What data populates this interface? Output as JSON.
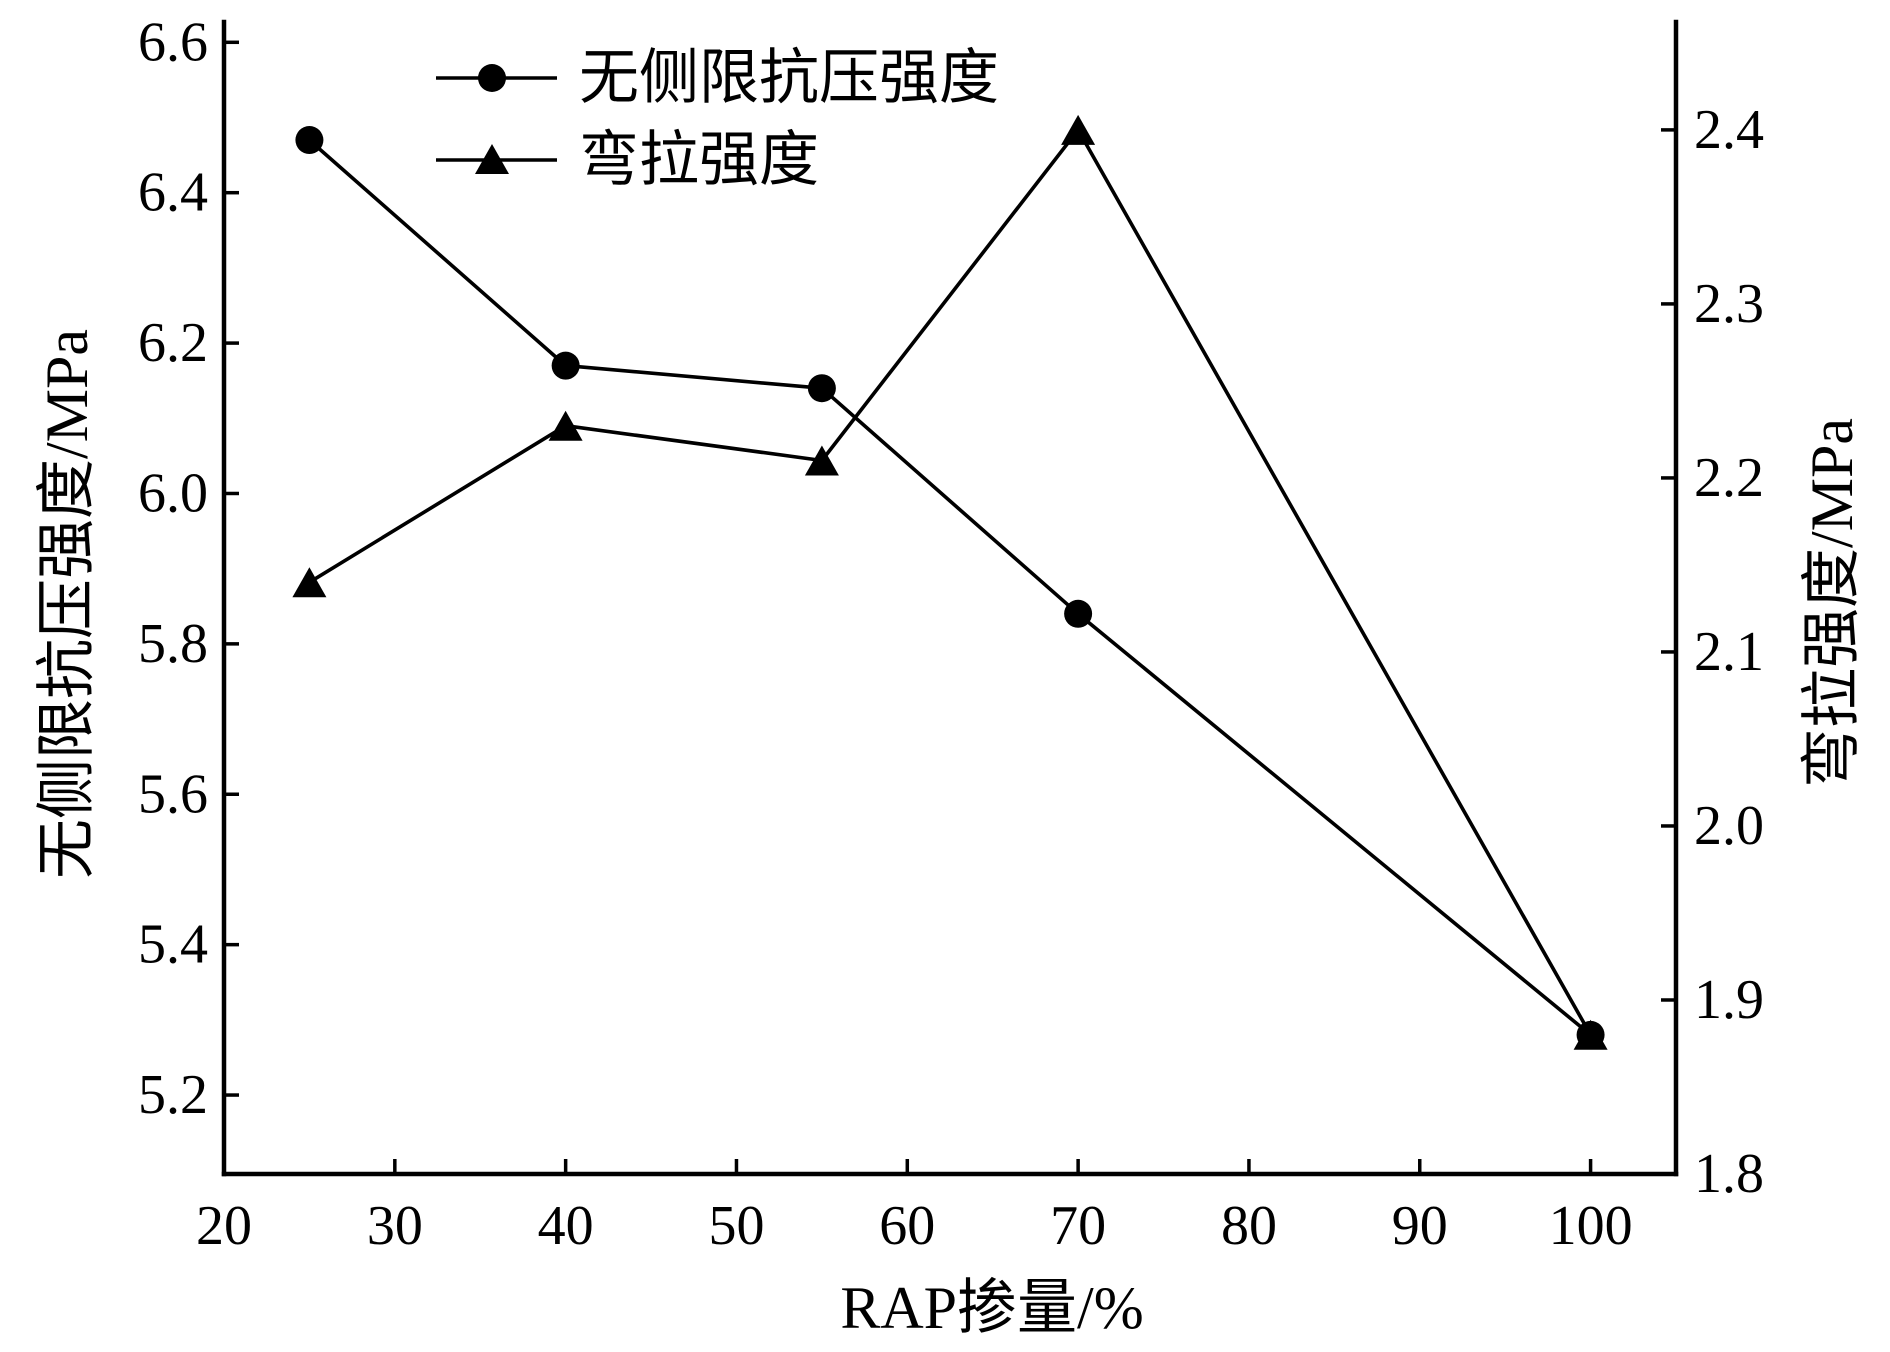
{
  "chart_data": {
    "type": "line",
    "title": "",
    "xlabel": "RAP掺量/%",
    "ylabel": "无侧限抗压强度/MPa",
    "ylabel_right": "弯拉强度/MPa",
    "xlim": [
      20,
      105
    ],
    "ylim": [
      5.095,
      6.627
    ],
    "ylim_right": [
      1.8,
      2.462
    ],
    "x_ticks": [
      "20",
      "30",
      "40",
      "50",
      "60",
      "70",
      "80",
      "90",
      "100"
    ],
    "y_ticks": [
      "5.2",
      "5.4",
      "5.6",
      "5.8",
      "6.0",
      "6.2",
      "6.4",
      "6.6"
    ],
    "y_ticks_right": [
      "1.8",
      "1.9",
      "2.0",
      "2.1",
      "2.2",
      "2.3",
      "2.4"
    ],
    "x": [
      25,
      40,
      55,
      70,
      100
    ],
    "series": [
      {
        "name": "无侧限抗压强度",
        "axis": "left",
        "marker": "circle",
        "values": [
          6.47,
          6.17,
          6.14,
          5.84,
          5.28
        ]
      },
      {
        "name": "弯拉强度",
        "axis": "right",
        "marker": "triangle",
        "values": [
          2.14,
          2.23,
          2.21,
          2.4,
          1.88
        ]
      }
    ],
    "legend": "top-left",
    "grid": false,
    "colors": {
      "line": "#000000",
      "marker": "#000000",
      "background": "#ffffff"
    }
  }
}
